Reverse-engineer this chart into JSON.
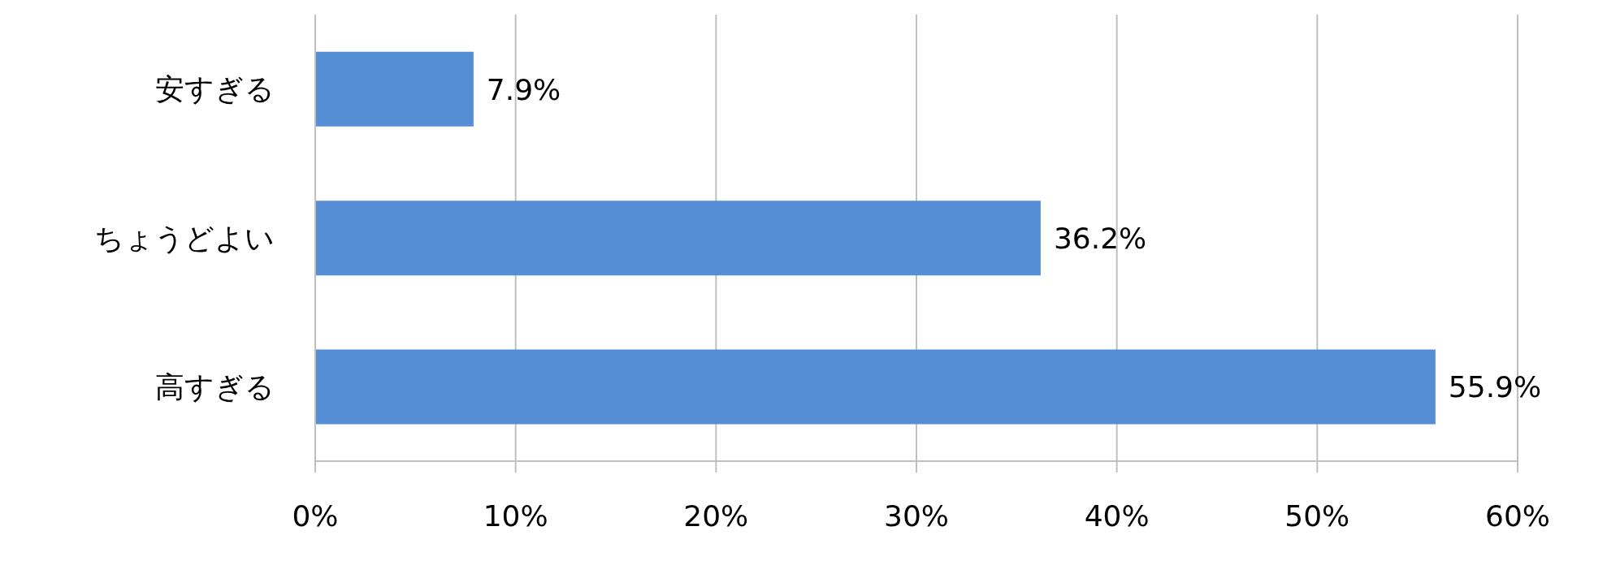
{
  "chart_data": {
    "type": "bar",
    "orientation": "horizontal",
    "categories": [
      "安すぎる",
      "ちょうどよい",
      "高すぎる"
    ],
    "values": [
      7.9,
      36.2,
      55.9
    ],
    "value_labels": [
      "7.9%",
      "36.2%",
      "55.9%"
    ],
    "color": "#558ed5",
    "xlim": [
      0,
      60
    ],
    "xticks": [
      {
        "value": 0,
        "label": "0%"
      },
      {
        "value": 10,
        "label": "10%"
      },
      {
        "value": 20,
        "label": "20%"
      },
      {
        "value": 30,
        "label": "30%"
      },
      {
        "value": 40,
        "label": "40%"
      },
      {
        "value": 50,
        "label": "50%"
      },
      {
        "value": 60,
        "label": "60%"
      }
    ],
    "grid": "x"
  }
}
